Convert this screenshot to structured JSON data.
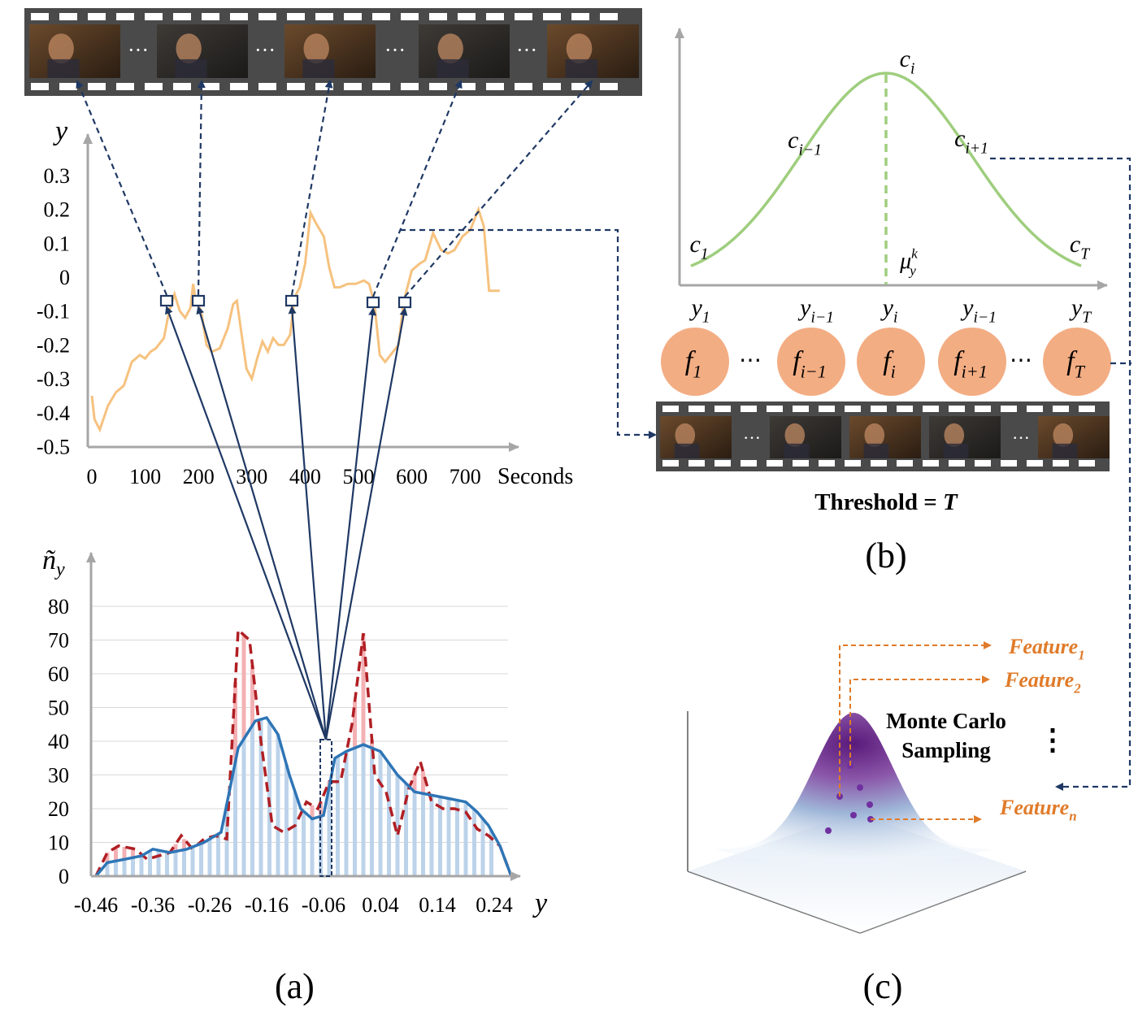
{
  "panel_a": {
    "caption": "(a)",
    "signal_plot": {
      "ylabel": "y",
      "xlabel": "Seconds",
      "yticks": [
        "0.3",
        "0.2",
        "0.1",
        "0",
        "-0.1",
        "-0.2",
        "-0.3",
        "-0.4",
        "-0.5"
      ],
      "xticks": [
        "0",
        "100",
        "200",
        "300",
        "400",
        "500",
        "600",
        "700"
      ]
    },
    "histogram": {
      "ylabel_base": "ñ",
      "ylabel_sub": "y",
      "xlabel": "y",
      "yticks": [
        "80",
        "70",
        "60",
        "50",
        "40",
        "30",
        "20",
        "10",
        "0"
      ],
      "xticks": [
        "-0.46",
        "-0.36",
        "-0.26",
        "-0.16",
        "-0.06",
        "0.04",
        "0.14",
        "0.24"
      ]
    }
  },
  "panel_b": {
    "caption": "(b)",
    "threshold_label": "Threshold = ",
    "threshold_var": "T",
    "curve_labels": [
      {
        "base": "c",
        "sub": "1"
      },
      {
        "base": "c",
        "sub": "i−1"
      },
      {
        "base": "c",
        "sub": "i"
      },
      {
        "base": "c",
        "sub": "i+1"
      },
      {
        "base": "c",
        "sub": "T"
      }
    ],
    "mean_label": {
      "base": "μ",
      "sub": "y",
      "sup": "k"
    },
    "y_labels": [
      {
        "base": "y",
        "sub": "1"
      },
      {
        "base": "y",
        "sub": "i−1"
      },
      {
        "base": "y",
        "sub": "i"
      },
      {
        "base": "y",
        "sub": "i−1"
      },
      {
        "base": "y",
        "sub": "T"
      }
    ],
    "nodes": [
      {
        "base": "f",
        "sub": "1"
      },
      {
        "base": "f",
        "sub": "i−1"
      },
      {
        "base": "f",
        "sub": "i"
      },
      {
        "base": "f",
        "sub": "i+1"
      },
      {
        "base": "f",
        "sub": "T"
      }
    ],
    "ellipsis": "⋯"
  },
  "panel_c": {
    "caption": "(c)",
    "title_line1": "Monte Carlo",
    "title_line2": "Sampling",
    "vdots": "⋮",
    "features": [
      {
        "base": "Feature",
        "sub": "1"
      },
      {
        "base": "Feature",
        "sub": "2"
      },
      {
        "base": "Feature",
        "sub": "n"
      }
    ]
  },
  "film_ellipsis": "···",
  "colors": {
    "signal": "#f6c27f",
    "gaussian": "#9fce7e",
    "node": "#f3ad83",
    "arrow": "#1f3864",
    "hist_bar": "#bcd3ea",
    "hist_bar_red": "#f3b1b4",
    "hist_line": "#2e75b6",
    "hist_dashed": "#b01f24",
    "feature": "#e07b2a"
  }
}
